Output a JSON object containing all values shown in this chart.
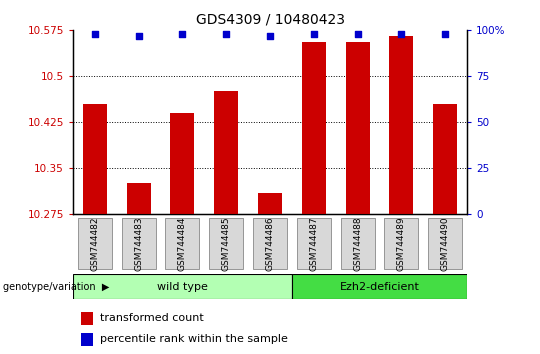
{
  "title": "GDS4309 / 10480423",
  "samples": [
    "GSM744482",
    "GSM744483",
    "GSM744484",
    "GSM744485",
    "GSM744486",
    "GSM744487",
    "GSM744488",
    "GSM744489",
    "GSM744490"
  ],
  "bar_values": [
    10.455,
    10.325,
    10.44,
    10.475,
    10.31,
    10.555,
    10.555,
    10.565,
    10.455
  ],
  "percentile_values": [
    98,
    97,
    98,
    98,
    97,
    98,
    98,
    98,
    98
  ],
  "bar_color": "#cc0000",
  "percentile_color": "#0000cc",
  "ylim_left": [
    10.275,
    10.575
  ],
  "ylim_right": [
    0,
    100
  ],
  "yticks_left": [
    10.275,
    10.35,
    10.425,
    10.5,
    10.575
  ],
  "yticks_right": [
    0,
    25,
    50,
    75,
    100
  ],
  "ytick_labels_left": [
    "10.275",
    "10.35",
    "10.425",
    "10.5",
    "10.575"
  ],
  "ytick_labels_right": [
    "0",
    "25",
    "50",
    "75",
    "100%"
  ],
  "grid_lines": [
    10.35,
    10.425,
    10.5
  ],
  "wild_type_count": 5,
  "ezh2_count": 4,
  "group_labels": [
    "wild type",
    "Ezh2-deficient"
  ],
  "group_colors": [
    "#b3ffb3",
    "#44dd44"
  ],
  "group_label_text": "genotype/variation",
  "legend_bar_label": "transformed count",
  "legend_dot_label": "percentile rank within the sample",
  "bar_width": 0.55,
  "title_fontsize": 10,
  "tick_fontsize": 7.5,
  "label_fontsize": 8
}
